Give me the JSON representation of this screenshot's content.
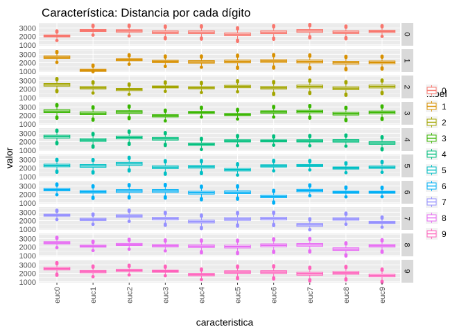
{
  "chart_data": {
    "type": "boxplot",
    "title": "Característica: Distancia por cada dígito",
    "xlabel": "caracteristica",
    "ylabel": "valor",
    "categories": [
      "euc0",
      "euc1",
      "euc2",
      "euc3",
      "euc4",
      "euc5",
      "euc6",
      "euc7",
      "euc8",
      "euc9"
    ],
    "facet_labels": [
      "0",
      "1",
      "2",
      "3",
      "4",
      "5",
      "6",
      "7",
      "8",
      "9"
    ],
    "y_ticks": [
      1000,
      2000,
      3000
    ],
    "ylim": [
      900,
      3600
    ],
    "legend": {
      "title": "label",
      "entries": [
        "0",
        "1",
        "2",
        "3",
        "4",
        "5",
        "6",
        "7",
        "8",
        "9"
      ],
      "position": "right"
    },
    "colors": [
      "#F8766D",
      "#D89000",
      "#A3A500",
      "#39B600",
      "#00BF7D",
      "#00BFC4",
      "#00B0F6",
      "#9590FF",
      "#E76BF3",
      "#FF62BC"
    ],
    "panel_background": "#EBEBEB",
    "strip_background": "#D9D9D9",
    "series": [
      {
        "label": "0",
        "medians": [
          2050,
          2700,
          2650,
          2500,
          2500,
          2250,
          2500,
          2650,
          2500,
          2600
        ]
      },
      {
        "label": "1",
        "medians": [
          2650,
          1100,
          2350,
          2150,
          2100,
          2150,
          2200,
          2150,
          2000,
          2050
        ]
      },
      {
        "label": "2",
        "medians": [
          2500,
          2150,
          1950,
          2250,
          2150,
          2300,
          2150,
          2300,
          2100,
          2300
        ]
      },
      {
        "label": "3",
        "medians": [
          2500,
          2250,
          2400,
          1950,
          2350,
          2100,
          2400,
          2450,
          2200,
          2350
        ]
      },
      {
        "label": "4",
        "medians": [
          2600,
          2200,
          2500,
          2350,
          1700,
          2100,
          2100,
          2100,
          2100,
          1850
        ]
      },
      {
        "label": "5",
        "medians": [
          2300,
          2250,
          2500,
          2100,
          2150,
          1800,
          2250,
          2300,
          2000,
          2100
        ]
      },
      {
        "label": "6",
        "medians": [
          2550,
          2300,
          2400,
          2400,
          2200,
          2250,
          1750,
          2450,
          2250,
          2250
        ]
      },
      {
        "label": "7",
        "medians": [
          2650,
          2150,
          2550,
          2250,
          1900,
          2200,
          2250,
          1500,
          2200,
          1800
        ]
      },
      {
        "label": "8",
        "medians": [
          2500,
          2100,
          2300,
          2150,
          2100,
          2050,
          2200,
          2250,
          1750,
          2150
        ]
      },
      {
        "label": "9",
        "medians": [
          2550,
          2200,
          2350,
          2250,
          1850,
          2150,
          2150,
          1950,
          2050,
          1750
        ]
      }
    ]
  }
}
